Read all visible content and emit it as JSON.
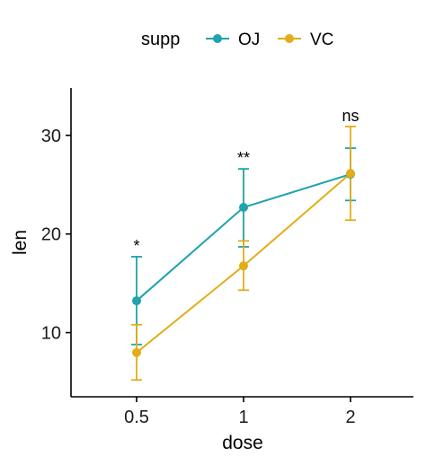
{
  "chart_data": {
    "type": "line",
    "xlabel": "dose",
    "ylabel": "len",
    "categories": [
      "0.5",
      "1",
      "2"
    ],
    "ylim": [
      3.5,
      34.8
    ],
    "yticks": [
      10,
      20,
      30
    ],
    "grid": false,
    "legend": {
      "title": "supp",
      "placement": "top",
      "entries": [
        "OJ",
        "VC"
      ]
    },
    "series": [
      {
        "name": "OJ",
        "color": "#1fa3ad",
        "values": [
          13.23,
          22.7,
          26.06
        ],
        "error_low": [
          8.8,
          18.7,
          23.4
        ],
        "error_high": [
          17.7,
          26.6,
          28.7
        ]
      },
      {
        "name": "VC",
        "color": "#e2ad18",
        "values": [
          7.98,
          16.77,
          26.14
        ],
        "error_low": [
          5.2,
          14.3,
          21.4
        ],
        "error_high": [
          10.8,
          19.3,
          30.9
        ]
      }
    ],
    "annotations": [
      {
        "x": "0.5",
        "y": 18.8,
        "text": "*"
      },
      {
        "x": "1",
        "y": 27.7,
        "text": "**"
      },
      {
        "x": "2",
        "y": 32.0,
        "text": "ns"
      }
    ]
  }
}
